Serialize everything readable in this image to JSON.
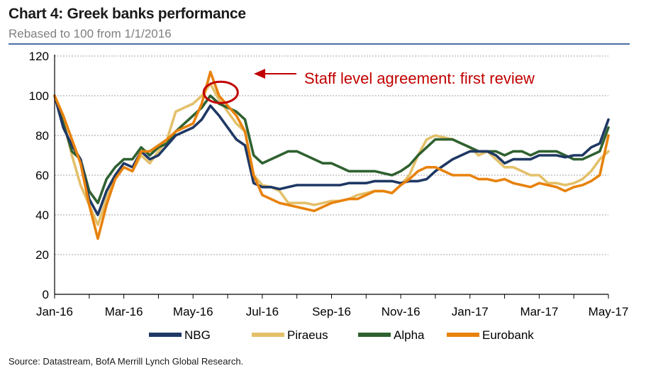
{
  "header": {
    "title": "Chart 4: Greek banks performance",
    "subtitle": "Rebased to 100 from 1/1/2016"
  },
  "source": "Source: Datastream, BofA Merrill Lynch Global Research.",
  "colors": {
    "NBG": "#1f3864",
    "Piraeus": "#e3c06a",
    "Alpha": "#2f6130",
    "Eurobank": "#e8820c",
    "annotation": "#c00000",
    "grid": "#a0a0a0",
    "rule": "#4a6fa5"
  },
  "chart_data": {
    "type": "line",
    "title": "Chart 4: Greek banks performance",
    "subtitle": "Rebased to 100 from 1/1/2016",
    "xlabel": "",
    "ylabel": "",
    "ylim": [
      0,
      120
    ],
    "yticks": [
      0,
      20,
      40,
      60,
      80,
      100,
      120
    ],
    "xtick_labels": [
      "Jan-16",
      "Mar-16",
      "May-16",
      "Jul-16",
      "Sep-16",
      "Nov-16",
      "Jan-17",
      "Mar-17",
      "May-17"
    ],
    "grid": true,
    "legend_position": "bottom",
    "annotation": {
      "text": "Staff level agreement: first review",
      "target_month": 4.8,
      "target_value": 106
    },
    "x_months": [
      0,
      0.25,
      0.5,
      0.75,
      1,
      1.25,
      1.5,
      1.75,
      2,
      2.25,
      2.5,
      2.75,
      3,
      3.25,
      3.5,
      3.75,
      4,
      4.25,
      4.5,
      4.75,
      5,
      5.25,
      5.5,
      5.75,
      6,
      6.25,
      6.5,
      6.75,
      7,
      7.25,
      7.5,
      7.75,
      8,
      8.25,
      8.5,
      8.75,
      9,
      9.25,
      9.5,
      9.75,
      10,
      10.25,
      10.5,
      10.75,
      11,
      11.25,
      11.5,
      11.75,
      12,
      12.25,
      12.5,
      12.75,
      13,
      13.25,
      13.5,
      13.75,
      14,
      14.25,
      14.5,
      14.75,
      15,
      15.25,
      15.5,
      15.75,
      16
    ],
    "series": [
      {
        "name": "NBG",
        "values": [
          100,
          84,
          75,
          68,
          48,
          40,
          52,
          60,
          66,
          64,
          72,
          68,
          70,
          75,
          80,
          82,
          84,
          88,
          95,
          90,
          84,
          78,
          75,
          56,
          54,
          54,
          53,
          54,
          55,
          55,
          55,
          55,
          55,
          55,
          56,
          56,
          56,
          57,
          57,
          57,
          56,
          57,
          57,
          58,
          62,
          65,
          68,
          70,
          72,
          72,
          72,
          70,
          66,
          68,
          68,
          68,
          70,
          70,
          70,
          69,
          70,
          70,
          74,
          76,
          88
        ]
      },
      {
        "name": "Piraeus",
        "values": [
          100,
          88,
          70,
          55,
          45,
          35,
          48,
          60,
          64,
          62,
          70,
          66,
          72,
          78,
          92,
          94,
          96,
          100,
          106,
          98,
          92,
          86,
          82,
          60,
          55,
          54,
          52,
          46,
          46,
          46,
          45,
          46,
          47,
          47,
          48,
          50,
          51,
          52,
          52,
          51,
          55,
          60,
          70,
          78,
          80,
          79,
          78,
          76,
          74,
          70,
          72,
          68,
          64,
          64,
          62,
          60,
          60,
          56,
          56,
          55,
          56,
          58,
          62,
          68,
          72
        ]
      },
      {
        "name": "Alpha",
        "values": [
          100,
          86,
          72,
          68,
          52,
          46,
          58,
          64,
          68,
          68,
          74,
          70,
          74,
          76,
          82,
          86,
          90,
          94,
          100,
          96,
          94,
          92,
          88,
          70,
          66,
          68,
          70,
          72,
          72,
          70,
          68,
          66,
          66,
          64,
          62,
          62,
          62,
          62,
          61,
          60,
          62,
          65,
          70,
          74,
          78,
          78,
          78,
          76,
          74,
          72,
          72,
          72,
          70,
          72,
          72,
          70,
          72,
          72,
          72,
          70,
          68,
          68,
          70,
          72,
          84
        ]
      },
      {
        "name": "Eurobank",
        "values": [
          100,
          90,
          78,
          66,
          45,
          28,
          45,
          58,
          64,
          62,
          72,
          72,
          75,
          78,
          82,
          84,
          86,
          96,
          112,
          100,
          95,
          90,
          82,
          60,
          50,
          48,
          46,
          45,
          44,
          43,
          42,
          44,
          46,
          47,
          48,
          48,
          50,
          52,
          52,
          51,
          55,
          58,
          62,
          64,
          64,
          62,
          60,
          60,
          60,
          58,
          58,
          57,
          58,
          56,
          55,
          54,
          56,
          55,
          54,
          52,
          54,
          55,
          57,
          60,
          80
        ]
      }
    ]
  }
}
